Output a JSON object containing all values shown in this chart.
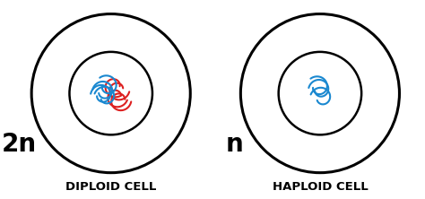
{
  "bg_color": "#ffffff",
  "diploid_label": "DIPLOID CELL",
  "haploid_label": "HAPLOID CELL",
  "diploid_n": "2n",
  "haploid_n": "n",
  "title_fontsize": 9.5,
  "n_fontsize": 20,
  "line_color": "#000000",
  "red_color": "#dd2020",
  "blue_color": "#1a88d0",
  "lw_outer": 2.2,
  "lw_inner": 1.8,
  "lw_chrom": 1.5
}
